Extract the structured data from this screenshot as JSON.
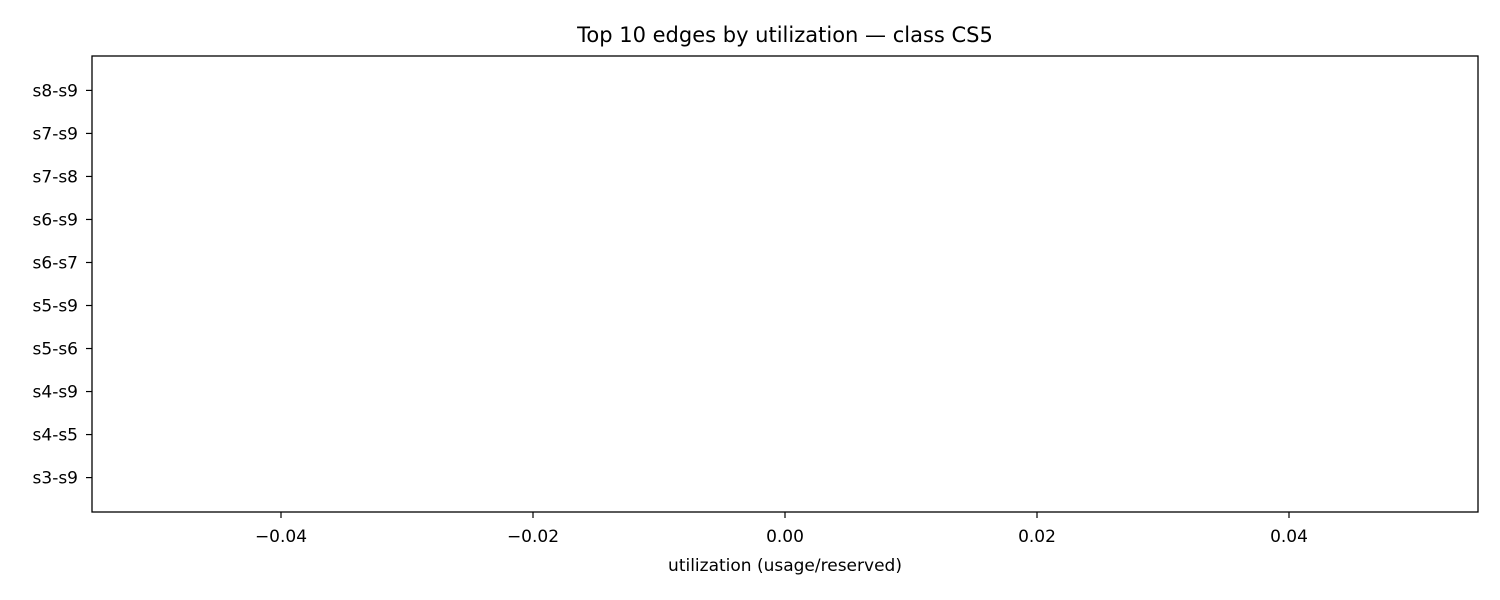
{
  "chart_data": {
    "type": "bar",
    "orientation": "horizontal",
    "title": "Top 10 edges by utilization — class CS5",
    "xlabel": "utilization (usage/reserved)",
    "ylabel": "",
    "categories": [
      "s3-s9",
      "s4-s5",
      "s4-s9",
      "s5-s6",
      "s5-s9",
      "s6-s7",
      "s6-s9",
      "s7-s8",
      "s7-s9",
      "s8-s9"
    ],
    "values": [
      0,
      0,
      0,
      0,
      0,
      0,
      0,
      0,
      0,
      0
    ],
    "xlim": [
      -0.055,
      0.055
    ],
    "xticks": [
      -0.04,
      -0.02,
      0.0,
      0.02,
      0.04
    ],
    "xtick_labels": [
      "−0.04",
      "−0.02",
      "0.00",
      "0.02",
      "0.04"
    ],
    "grid": false,
    "legend": "none",
    "colors": {
      "bar": "#1f77b4",
      "axis": "#000000"
    }
  }
}
